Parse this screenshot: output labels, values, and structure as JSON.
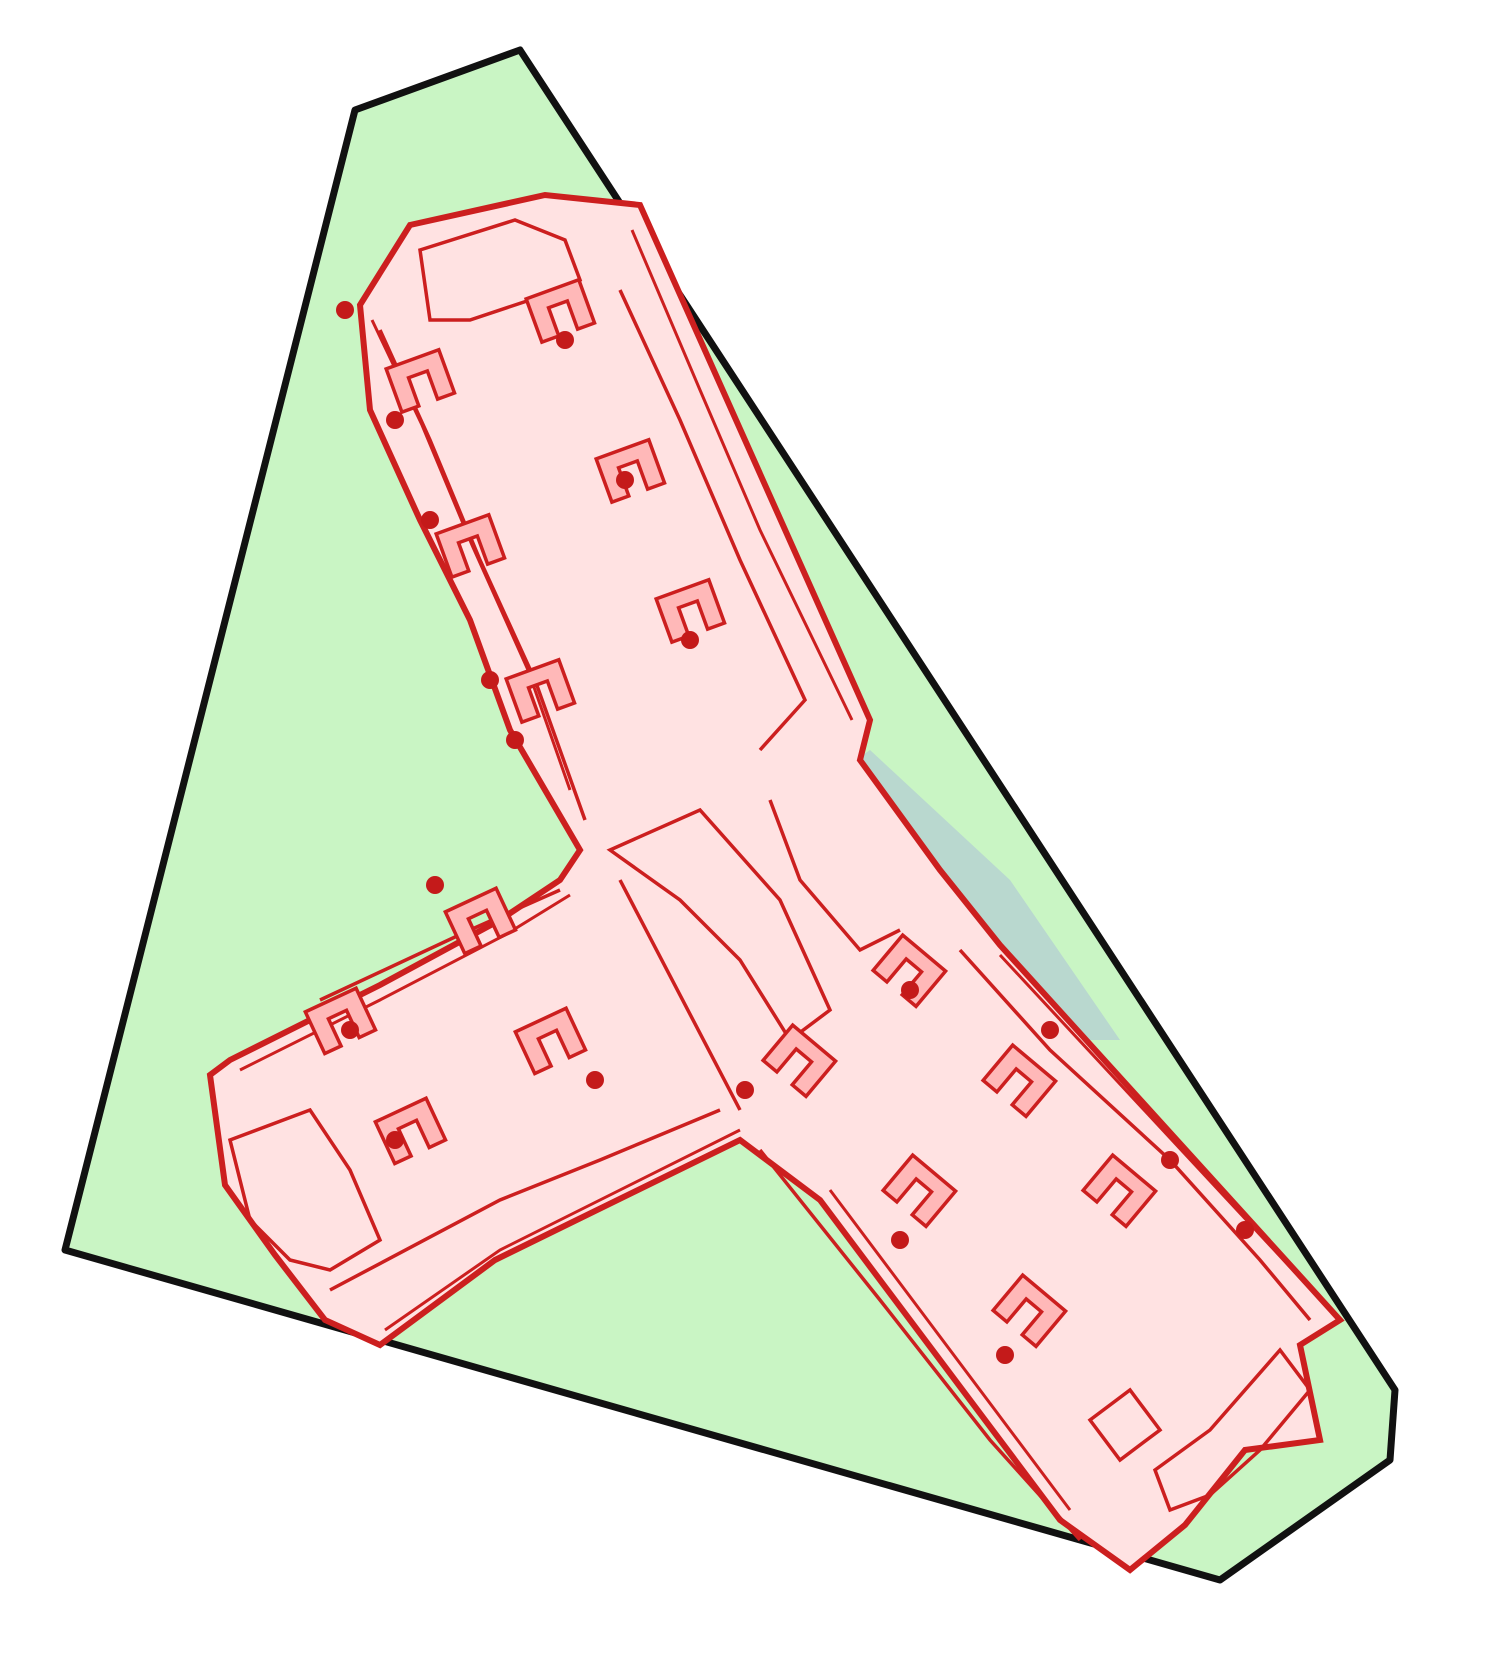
{
  "colors": {
    "background": "#ffffff",
    "site_fill": "#c9f5c4",
    "site_outline": "#111111",
    "courtyard_fill": "#b9d8cf",
    "building_fill": "#ffe2e2",
    "building_outline": "#cc1f1f",
    "bay_fill": "#ffb8b8",
    "door_dot": "#c41a1a"
  },
  "legend": {}
}
